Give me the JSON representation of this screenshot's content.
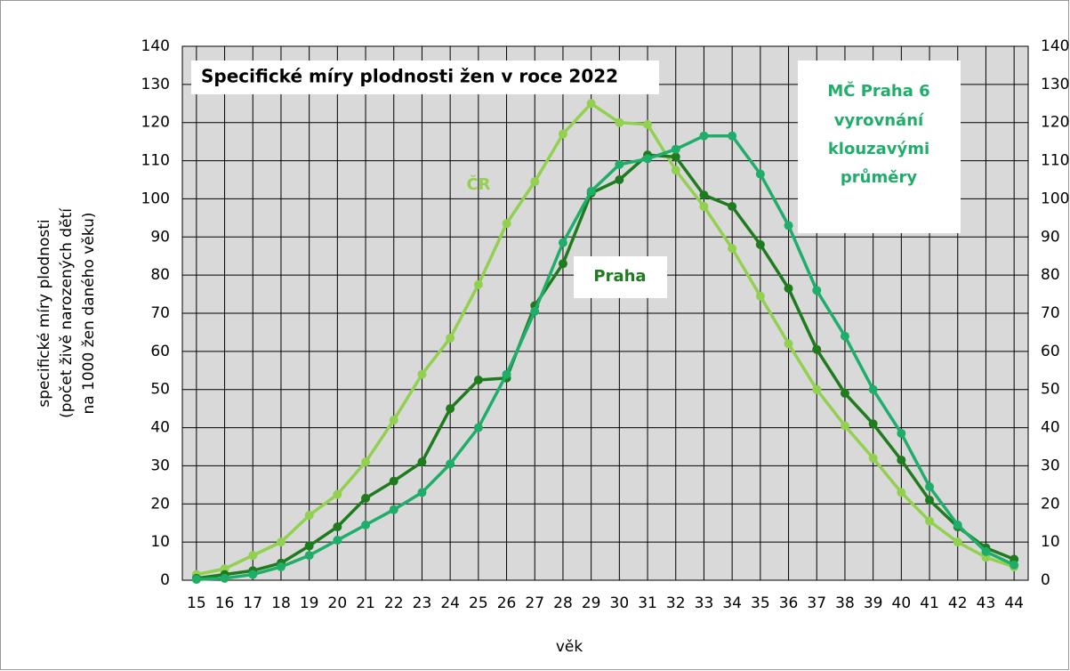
{
  "chart_data": {
    "type": "line",
    "title": "Specifické míry plodnosti žen v roce 2022",
    "y_label": [
      "specifické  míry plodnosti",
      "(počet živě narozených dětí",
      "na 1000 žen daného věku)"
    ],
    "x_label": "věk",
    "annotation": [
      "vyrovnání",
      "klouzavými",
      "průměry"
    ],
    "x": [
      15,
      16,
      17,
      18,
      19,
      20,
      21,
      22,
      23,
      24,
      25,
      26,
      27,
      28,
      29,
      30,
      31,
      32,
      33,
      34,
      35,
      36,
      37,
      38,
      39,
      40,
      41,
      42,
      43,
      44
    ],
    "xlim": [
      14.5,
      44.5
    ],
    "xticks": [
      15,
      16,
      17,
      18,
      19,
      20,
      21,
      22,
      23,
      24,
      25,
      26,
      27,
      28,
      29,
      30,
      31,
      32,
      33,
      34,
      35,
      36,
      37,
      38,
      39,
      40,
      41,
      42,
      43,
      44
    ],
    "ylim": [
      0,
      140
    ],
    "yticks": [
      0,
      10,
      20,
      30,
      40,
      50,
      60,
      70,
      80,
      90,
      100,
      110,
      120,
      130,
      140
    ],
    "y2lim": [
      0,
      140
    ],
    "y2ticks": [
      0,
      10,
      20,
      30,
      40,
      50,
      60,
      70,
      80,
      90,
      100,
      110,
      120,
      130,
      140
    ],
    "grid": true,
    "series": [
      {
        "name": "ČR",
        "color": "#92d050",
        "values": [
          1.5,
          3,
          6.5,
          10,
          17,
          22.5,
          31,
          42,
          54,
          63.5,
          77.5,
          93.5,
          104.5,
          117,
          125,
          120,
          119.5,
          107.5,
          98,
          87,
          74.5,
          62,
          50,
          40.5,
          32,
          23,
          15.5,
          10,
          6,
          3.5
        ]
      },
      {
        "name": "Praha",
        "color": "#1e7b1e",
        "values": [
          0.5,
          1.5,
          2.5,
          4.5,
          9,
          14,
          21.5,
          26,
          31,
          45,
          52.5,
          53,
          72,
          83,
          101.5,
          105,
          111.5,
          111,
          101,
          98,
          88,
          76.5,
          60.5,
          49,
          41,
          31.5,
          21,
          14,
          8.5,
          5.5
        ]
      },
      {
        "name": "MČ Praha 6",
        "color": "#1fae6a",
        "values": [
          0.2,
          0.5,
          1.5,
          3.5,
          6.5,
          10.5,
          14.5,
          18.5,
          23,
          30.5,
          40,
          54,
          70.5,
          88.5,
          102,
          109,
          110.5,
          113,
          116.5,
          116.5,
          106.5,
          93,
          76,
          64,
          50,
          38.5,
          24.5,
          14.5,
          7.5,
          4
        ]
      }
    ]
  }
}
